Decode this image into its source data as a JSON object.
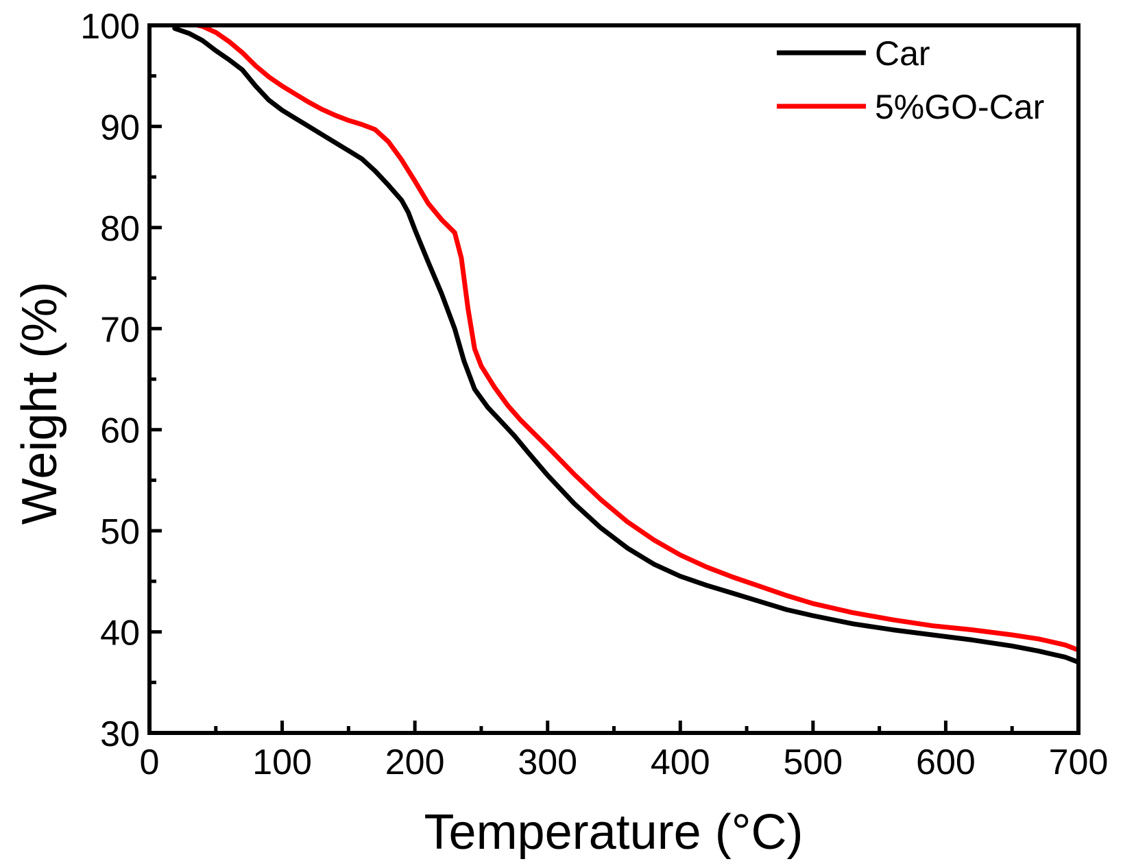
{
  "chart_data": {
    "type": "line",
    "title": "",
    "xlabel": "Temperature (°C)",
    "ylabel": "Weight (%)",
    "xlim": [
      0,
      700
    ],
    "ylim": [
      30,
      100
    ],
    "xticks": [
      0,
      100,
      200,
      300,
      400,
      500,
      600,
      700
    ],
    "yticks": [
      30,
      40,
      50,
      60,
      70,
      80,
      90,
      100
    ],
    "xticks_minor": [
      50,
      150,
      250,
      350,
      450,
      550,
      650
    ],
    "yticks_minor": [
      35,
      45,
      55,
      65,
      75,
      85,
      95
    ],
    "grid": false,
    "legend_position": "top-right",
    "series": [
      {
        "name": "Car",
        "color": "#000000",
        "points": [
          [
            19,
            99.7
          ],
          [
            30,
            99.2
          ],
          [
            40,
            98.5
          ],
          [
            50,
            97.5
          ],
          [
            60,
            96.6
          ],
          [
            70,
            95.6
          ],
          [
            80,
            94.0
          ],
          [
            90,
            92.6
          ],
          [
            100,
            91.6
          ],
          [
            110,
            90.8
          ],
          [
            120,
            90.0
          ],
          [
            130,
            89.2
          ],
          [
            140,
            88.4
          ],
          [
            150,
            87.6
          ],
          [
            160,
            86.8
          ],
          [
            170,
            85.6
          ],
          [
            180,
            84.2
          ],
          [
            190,
            82.7
          ],
          [
            195,
            81.5
          ],
          [
            200,
            79.8
          ],
          [
            210,
            76.6
          ],
          [
            220,
            73.5
          ],
          [
            230,
            70.0
          ],
          [
            237,
            66.8
          ],
          [
            245,
            64.0
          ],
          [
            255,
            62.2
          ],
          [
            265,
            60.8
          ],
          [
            275,
            59.4
          ],
          [
            285,
            57.8
          ],
          [
            300,
            55.5
          ],
          [
            320,
            52.7
          ],
          [
            340,
            50.3
          ],
          [
            360,
            48.3
          ],
          [
            380,
            46.7
          ],
          [
            400,
            45.5
          ],
          [
            420,
            44.6
          ],
          [
            440,
            43.8
          ],
          [
            460,
            43.0
          ],
          [
            480,
            42.2
          ],
          [
            500,
            41.6
          ],
          [
            530,
            40.8
          ],
          [
            560,
            40.2
          ],
          [
            590,
            39.7
          ],
          [
            620,
            39.2
          ],
          [
            650,
            38.6
          ],
          [
            670,
            38.1
          ],
          [
            690,
            37.5
          ],
          [
            700,
            37.0
          ]
        ]
      },
      {
        "name": "5%GO-Car",
        "color": "#ff0000",
        "points": [
          [
            19,
            100.3
          ],
          [
            30,
            100.2
          ],
          [
            40,
            99.9
          ],
          [
            50,
            99.3
          ],
          [
            60,
            98.4
          ],
          [
            70,
            97.3
          ],
          [
            80,
            96.0
          ],
          [
            90,
            94.9
          ],
          [
            100,
            94.0
          ],
          [
            110,
            93.2
          ],
          [
            120,
            92.4
          ],
          [
            130,
            91.7
          ],
          [
            140,
            91.1
          ],
          [
            150,
            90.6
          ],
          [
            160,
            90.2
          ],
          [
            170,
            89.7
          ],
          [
            180,
            88.5
          ],
          [
            190,
            86.7
          ],
          [
            200,
            84.6
          ],
          [
            210,
            82.4
          ],
          [
            220,
            80.8
          ],
          [
            230,
            79.5
          ],
          [
            235,
            77.0
          ],
          [
            240,
            72.0
          ],
          [
            245,
            68.0
          ],
          [
            250,
            66.3
          ],
          [
            260,
            64.2
          ],
          [
            270,
            62.4
          ],
          [
            280,
            60.9
          ],
          [
            300,
            58.3
          ],
          [
            320,
            55.6
          ],
          [
            340,
            53.1
          ],
          [
            360,
            50.9
          ],
          [
            380,
            49.1
          ],
          [
            400,
            47.6
          ],
          [
            420,
            46.4
          ],
          [
            440,
            45.4
          ],
          [
            460,
            44.5
          ],
          [
            480,
            43.6
          ],
          [
            500,
            42.8
          ],
          [
            530,
            41.9
          ],
          [
            560,
            41.2
          ],
          [
            590,
            40.6
          ],
          [
            620,
            40.2
          ],
          [
            650,
            39.7
          ],
          [
            670,
            39.3
          ],
          [
            690,
            38.7
          ],
          [
            700,
            38.2
          ]
        ]
      }
    ]
  }
}
